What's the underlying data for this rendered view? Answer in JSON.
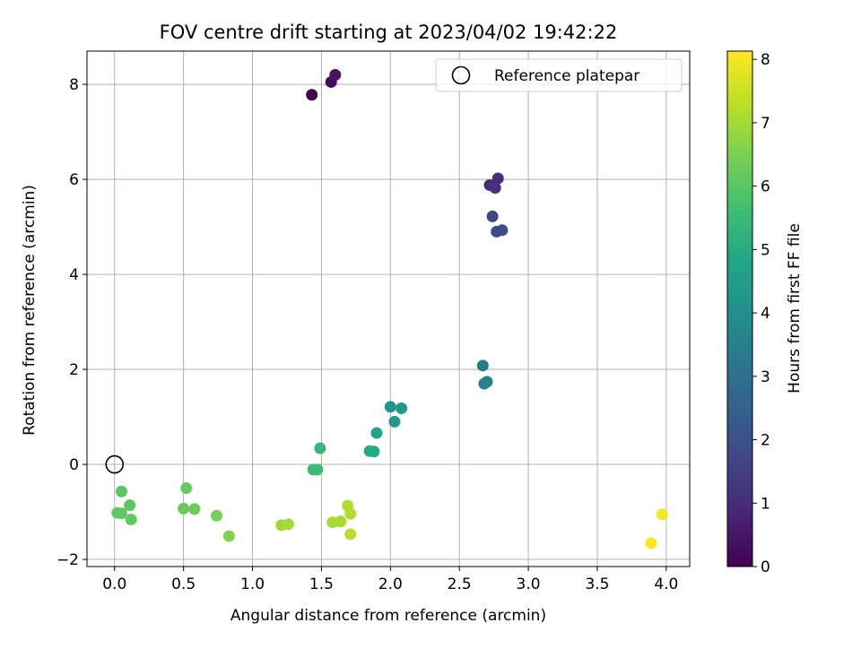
{
  "chart_data": {
    "type": "scatter",
    "title": "FOV centre drift starting at 2023/04/02 19:42:22",
    "xlabel": "Angular distance from reference (arcmin)",
    "ylabel": "Rotation from reference (arcmin)",
    "xlim": [
      -0.2,
      4.17
    ],
    "ylim": [
      -2.15,
      8.7
    ],
    "xticks": [
      0.0,
      0.5,
      1.0,
      1.5,
      2.0,
      2.5,
      3.0,
      3.5,
      4.0
    ],
    "xtick_labels": [
      "0.0",
      "0.5",
      "1.0",
      "1.5",
      "2.0",
      "2.5",
      "3.0",
      "3.5",
      "4.0"
    ],
    "yticks": [
      -2,
      0,
      2,
      4,
      6,
      8
    ],
    "ytick_labels": [
      "−2",
      "0",
      "2",
      "4",
      "6",
      "8"
    ],
    "grid": true,
    "legend": {
      "position": "top-right",
      "entries": [
        "Reference platepar"
      ]
    },
    "colorbar": {
      "label": "Hours from first FF file",
      "range": [
        0,
        8.13
      ],
      "ticks": [
        0,
        1,
        2,
        3,
        4,
        5,
        6,
        7,
        8
      ],
      "tick_labels": [
        "0",
        "1",
        "2",
        "3",
        "4",
        "5",
        "6",
        "7",
        "8"
      ],
      "colormap": "viridis"
    },
    "reference_point": {
      "x": 0,
      "y": 0
    },
    "points": [
      {
        "x": 1.43,
        "y": 7.78,
        "hours": 0.0
      },
      {
        "x": 1.57,
        "y": 8.05,
        "hours": 0.2
      },
      {
        "x": 1.6,
        "y": 8.2,
        "hours": 0.4
      },
      {
        "x": 2.72,
        "y": 5.88,
        "hours": 1.0
      },
      {
        "x": 2.78,
        "y": 6.02,
        "hours": 1.1
      },
      {
        "x": 2.76,
        "y": 5.82,
        "hours": 1.2
      },
      {
        "x": 2.74,
        "y": 5.22,
        "hours": 1.6
      },
      {
        "x": 2.77,
        "y": 4.9,
        "hours": 1.8
      },
      {
        "x": 2.81,
        "y": 4.93,
        "hours": 1.9
      },
      {
        "x": 2.67,
        "y": 2.08,
        "hours": 3.3
      },
      {
        "x": 2.68,
        "y": 1.7,
        "hours": 3.4
      },
      {
        "x": 2.7,
        "y": 1.74,
        "hours": 3.5
      },
      {
        "x": 2.0,
        "y": 1.21,
        "hours": 4.2
      },
      {
        "x": 2.08,
        "y": 1.18,
        "hours": 4.3
      },
      {
        "x": 2.03,
        "y": 0.9,
        "hours": 4.4
      },
      {
        "x": 1.9,
        "y": 0.66,
        "hours": 4.7
      },
      {
        "x": 1.85,
        "y": 0.28,
        "hours": 4.9
      },
      {
        "x": 1.88,
        "y": 0.27,
        "hours": 4.95
      },
      {
        "x": 1.49,
        "y": 0.34,
        "hours": 5.4
      },
      {
        "x": 1.44,
        "y": -0.11,
        "hours": 5.5
      },
      {
        "x": 1.47,
        "y": -0.11,
        "hours": 5.55
      },
      {
        "x": 0.05,
        "y": -0.57,
        "hours": 6.0
      },
      {
        "x": 0.11,
        "y": -0.86,
        "hours": 6.05
      },
      {
        "x": 0.02,
        "y": -1.02,
        "hours": 6.1
      },
      {
        "x": 0.05,
        "y": -1.03,
        "hours": 6.1
      },
      {
        "x": 0.12,
        "y": -1.16,
        "hours": 6.15
      },
      {
        "x": 0.52,
        "y": -0.5,
        "hours": 6.2
      },
      {
        "x": 0.5,
        "y": -0.93,
        "hours": 6.25
      },
      {
        "x": 0.58,
        "y": -0.94,
        "hours": 6.3
      },
      {
        "x": 0.74,
        "y": -1.08,
        "hours": 6.45
      },
      {
        "x": 0.83,
        "y": -1.51,
        "hours": 6.6
      },
      {
        "x": 1.21,
        "y": -1.28,
        "hours": 6.95
      },
      {
        "x": 1.26,
        "y": -1.26,
        "hours": 7.0
      },
      {
        "x": 1.58,
        "y": -1.22,
        "hours": 7.05
      },
      {
        "x": 1.64,
        "y": -1.2,
        "hours": 7.1
      },
      {
        "x": 1.69,
        "y": -0.87,
        "hours": 7.15
      },
      {
        "x": 1.71,
        "y": -1.04,
        "hours": 7.2
      },
      {
        "x": 1.71,
        "y": -1.47,
        "hours": 7.25
      },
      {
        "x": 3.97,
        "y": -1.05,
        "hours": 8.0
      },
      {
        "x": 3.89,
        "y": -1.66,
        "hours": 8.13
      }
    ]
  }
}
